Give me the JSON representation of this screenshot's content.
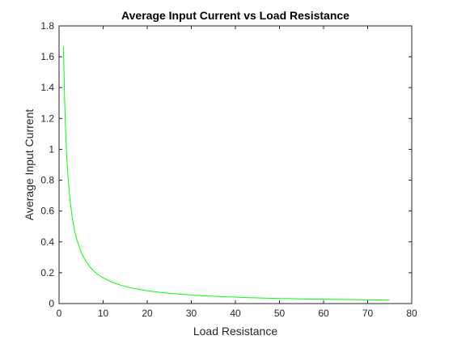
{
  "chart_data": {
    "type": "line",
    "title": "Average Input Current vs Load Resistance",
    "xlabel": "Load Resistance",
    "ylabel": "Average Input Current",
    "xlim": [
      0,
      80
    ],
    "ylim": [
      0,
      1.8
    ],
    "xticks": [
      0,
      10,
      20,
      30,
      40,
      50,
      60,
      70,
      80
    ],
    "yticks": [
      0,
      0.2,
      0.4,
      0.6,
      0.8,
      1,
      1.2,
      1.4,
      1.6,
      1.8
    ],
    "grid": false,
    "series": [
      {
        "color": "#00ff00",
        "x": [
          1,
          1.25,
          1.5,
          1.75,
          2,
          2.5,
          3,
          3.5,
          4,
          5,
          6,
          7,
          8,
          9,
          10,
          12,
          14,
          16,
          18,
          20,
          22.5,
          25,
          27.5,
          30,
          32.5,
          35,
          37.5,
          40,
          42.5,
          45,
          47.5,
          50,
          52.5,
          55,
          57.5,
          60,
          62.5,
          65,
          67.5,
          70,
          72.5,
          75
        ],
        "y": [
          1.667,
          1.333,
          1.111,
          0.952,
          0.833,
          0.667,
          0.556,
          0.476,
          0.417,
          0.333,
          0.278,
          0.238,
          0.208,
          0.185,
          0.167,
          0.139,
          0.119,
          0.104,
          0.093,
          0.083,
          0.074,
          0.067,
          0.061,
          0.056,
          0.051,
          0.048,
          0.044,
          0.042,
          0.039,
          0.037,
          0.035,
          0.033,
          0.032,
          0.03,
          0.029,
          0.028,
          0.027,
          0.026,
          0.025,
          0.024,
          0.023,
          0.022
        ]
      }
    ]
  }
}
